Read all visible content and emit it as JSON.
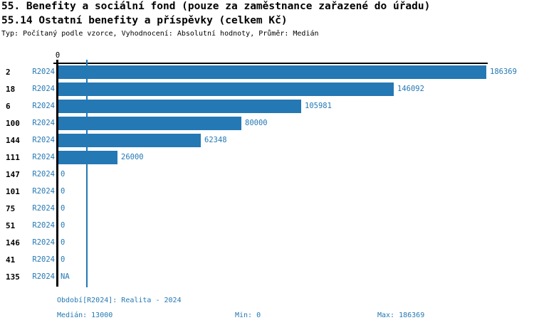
{
  "chart_data": {
    "type": "bar",
    "orientation": "horizontal",
    "title": "55. Benefity a sociální fond (pouze za zaměstnance zařazené do úřadu)",
    "subtitle": "55.14 Ostatní benefity a příspěvky (celkem Kč)",
    "meta": "Typ: Počítaný podle vzorce, Vyhodnocení: Absolutní hodnoty, Průměr: Medián",
    "categories": [
      "2",
      "18",
      "6",
      "100",
      "144",
      "111",
      "147",
      "101",
      "75",
      "51",
      "146",
      "41",
      "135"
    ],
    "series": [
      {
        "name": "R2024",
        "values": [
          186369,
          146092,
          105981,
          80000,
          62348,
          26000,
          0,
          0,
          0,
          0,
          0,
          0,
          null
        ],
        "value_labels": [
          "186369",
          "146092",
          "105981",
          "80000",
          "62348",
          "26000",
          "0",
          "0",
          "0",
          "0",
          "0",
          "0",
          "NA"
        ]
      }
    ],
    "xlim": [
      0,
      186369
    ],
    "x_tick_labels": [
      "0"
    ],
    "median_line_value": 13000,
    "bar_color": "#2478b4",
    "grid": false,
    "legend": false,
    "footer": {
      "period": "Období[R2024]: Realita - 2024",
      "median": "Medián: 13000",
      "min": "Min: 0",
      "max": "Max: 186369"
    }
  }
}
